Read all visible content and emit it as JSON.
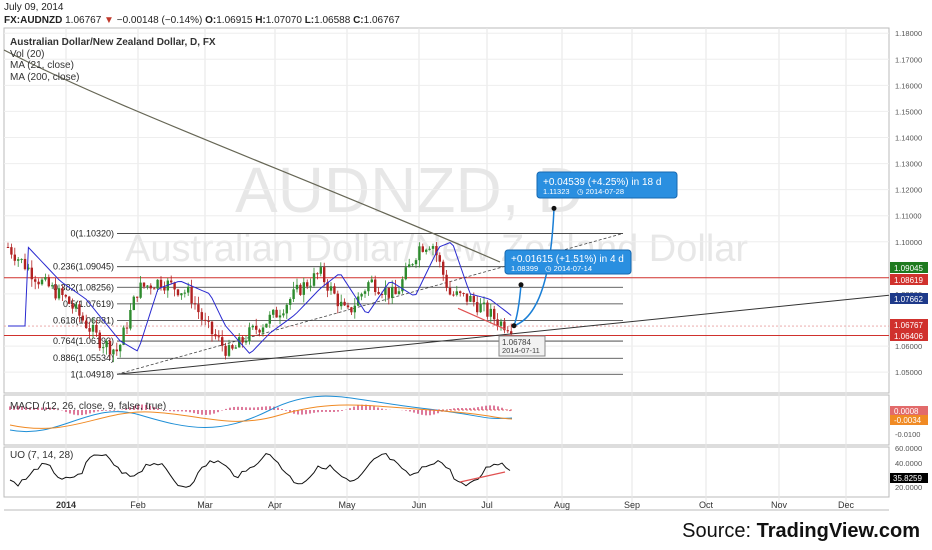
{
  "header": {
    "date": "July 09, 2014",
    "symbol": "FX:AUDNZD",
    "last": "1.06767",
    "change": "−0.00148 (−0.14%)",
    "open_label": "O:",
    "open": "1.06915",
    "high_label": "H:",
    "high": "1.07070",
    "low_label": "L:",
    "low": "1.06588",
    "close_label": "C:",
    "close": "1.06767",
    "down_arrow_color": "#c0392b"
  },
  "legend": {
    "title": "Australian Dollar/New Zealand Dollar, D, FX",
    "vol": "Vol (20)",
    "ma21": "MA (21, close)",
    "ma200": "MA (200, close)",
    "macd": "MACD (12, 26, close, 9, false, true)",
    "uo": "UO (7, 14, 28)"
  },
  "watermark": {
    "symbol": "AUDNZD, D",
    "name": "Australian Dollar/New Zealand Dollar"
  },
  "source": {
    "prefix": "Source: ",
    "brand": "TradingView.com"
  },
  "chart_data": {
    "type": "candlestick",
    "x_ticks": [
      "2014",
      "Feb",
      "Mar",
      "Apr",
      "May",
      "Jun",
      "Jul",
      "Aug",
      "Sep",
      "Oct",
      "Nov",
      "Dec"
    ],
    "price_axis": {
      "ticks": [
        "1.18000",
        "1.17000",
        "1.16000",
        "1.15000",
        "1.14000",
        "1.13000",
        "1.12000",
        "1.11000",
        "1.10000",
        "1.08000",
        "1.06000",
        "1.05000"
      ],
      "ylim": [
        1.042,
        1.182
      ]
    },
    "price_badges": [
      {
        "value": "1.09045",
        "color": "#1f7a1f"
      },
      {
        "value": "1.08619",
        "color": "#d0312d"
      },
      {
        "value": "1.07662",
        "color": "#1e3a8a"
      },
      {
        "value": "1.06767",
        "color": "#d0312d"
      },
      {
        "value": "1.06406",
        "color": "#d0312d"
      }
    ],
    "fib_levels": [
      {
        "label": "0(1.10320)",
        "value": 1.1032
      },
      {
        "label": "0.236(1.09045)",
        "value": 1.09045
      },
      {
        "label": "0.382(1.08256)",
        "value": 1.08256
      },
      {
        "label": "0.5(1.07619)",
        "value": 1.07619
      },
      {
        "label": "0.618(1.06981)",
        "value": 1.06981
      },
      {
        "label": "0.764(1.06193)",
        "value": 1.06193
      },
      {
        "label": "0.886(1.05534)",
        "value": 1.05534
      },
      {
        "label": "1(1.04918)",
        "value": 1.04918
      }
    ],
    "annotations": {
      "low_marker": {
        "price": "1.06784",
        "date": "2014-07-11"
      },
      "projection_short": {
        "headline": "+0.01615 (+1.51%) in 4 d",
        "target": "1.08399",
        "date": "2014-07-14"
      },
      "projection_long": {
        "headline": "+0.04539 (+4.25%) in 18 d",
        "target": "1.11323",
        "date": "2014-07-28"
      }
    },
    "macd_axis": {
      "ticks": [
        "-0.0100"
      ],
      "badges": [
        {
          "value": "0.0008",
          "color": "#e26a6a"
        },
        {
          "value": "-0.0034",
          "color": "#f08a24"
        }
      ]
    },
    "uo_axis": {
      "ticks": [
        "60.0000",
        "40.0000",
        "20.0000"
      ],
      "badges": [
        {
          "value": "35.8259",
          "color": "#000000"
        }
      ]
    },
    "series": [
      {
        "name": "Australian Dollar/New Zealand Dollar",
        "kind": "ohlc",
        "x": [
          0,
          0.4
        ],
        "close": [
          1.1,
          1.0677
        ]
      }
    ]
  }
}
